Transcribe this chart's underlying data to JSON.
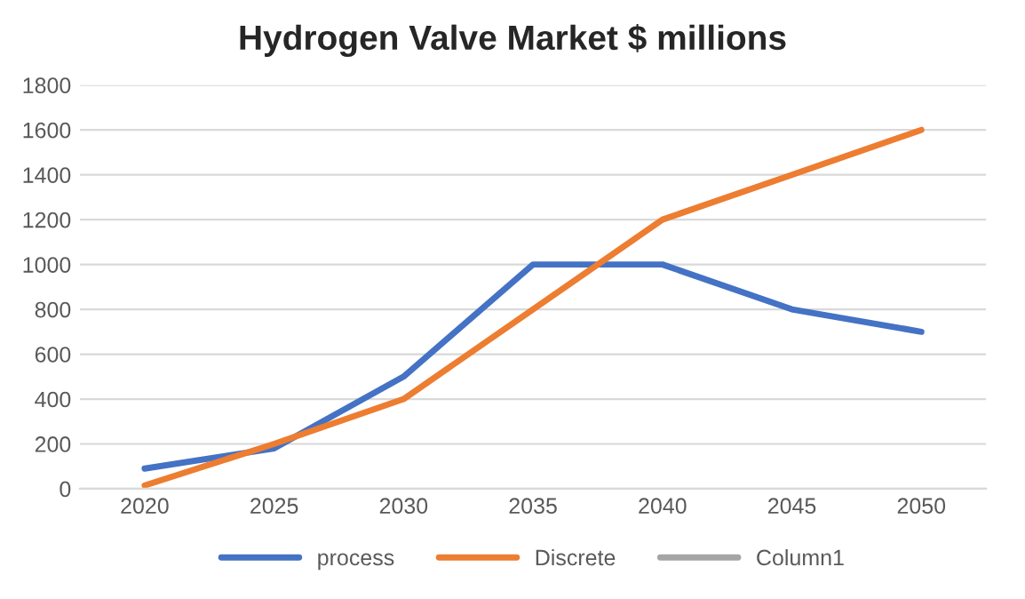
{
  "chart_data": {
    "type": "line",
    "title": "Hydrogen Valve Market $ millions",
    "categories": [
      "2020",
      "2025",
      "2030",
      "2035",
      "2040",
      "2045",
      "2050"
    ],
    "series": [
      {
        "name": "process",
        "color": "#4472c4",
        "values": [
          90,
          180,
          500,
          1000,
          1000,
          800,
          700
        ]
      },
      {
        "name": "Discrete",
        "color": "#ed7d31",
        "values": [
          15,
          200,
          400,
          800,
          1200,
          1400,
          1600
        ]
      },
      {
        "name": "Column1",
        "color": "#a5a5a5",
        "values": [
          null,
          null,
          null,
          null,
          null,
          null,
          null
        ]
      }
    ],
    "ylim": [
      0,
      1800
    ],
    "yticks": [
      0,
      200,
      400,
      600,
      800,
      1000,
      1200,
      1400,
      1600,
      1800
    ],
    "grid": "y",
    "legend": "bottom",
    "marker": "none",
    "line_style": "solid"
  }
}
